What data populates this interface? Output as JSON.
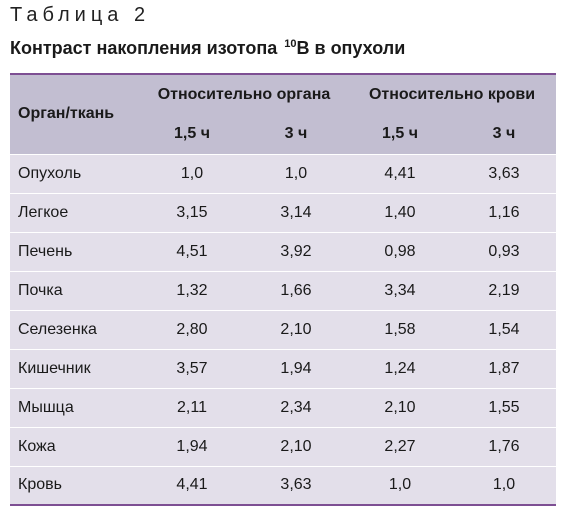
{
  "caption": "Таблица 2",
  "title": {
    "text": "Контраст накопления изотопа ",
    "superscript": "10",
    "text_after": "В в опухоли"
  },
  "table": {
    "organ_header": "Орган/ткань",
    "groups": [
      "Относительно органа",
      "Относительно крови"
    ],
    "subheaders": [
      "1,5 ч",
      "3 ч",
      "1,5 ч",
      "3 ч"
    ],
    "rows": [
      {
        "organ": "Опухоль",
        "values": [
          "1,0",
          "1,0",
          "4,41",
          "3,63"
        ]
      },
      {
        "organ": "Легкое",
        "values": [
          "3,15",
          "3,14",
          "1,40",
          "1,16"
        ]
      },
      {
        "organ": "Печень",
        "values": [
          "4,51",
          "3,92",
          "0,98",
          "0,93"
        ]
      },
      {
        "organ": "Почка",
        "values": [
          "1,32",
          "1,66",
          "3,34",
          "2,19"
        ]
      },
      {
        "organ": "Селезенка",
        "values": [
          "2,80",
          "2,10",
          "1,58",
          "1,54"
        ]
      },
      {
        "organ": "Кишечник",
        "values": [
          "3,57",
          "1,94",
          "1,24",
          "1,87"
        ]
      },
      {
        "organ": "Мышца",
        "values": [
          "2,11",
          "2,34",
          "2,10",
          "1,55"
        ]
      },
      {
        "organ": "Кожа",
        "values": [
          "1,94",
          "2,10",
          "2,27",
          "1,76"
        ]
      },
      {
        "organ": "Кровь",
        "values": [
          "4,41",
          "3,63",
          "1,0",
          "1,0"
        ]
      }
    ]
  },
  "colors": {
    "header_bg": "#c2bed1",
    "body_bg": "#e3dfea",
    "rule": "#7d4f93"
  }
}
